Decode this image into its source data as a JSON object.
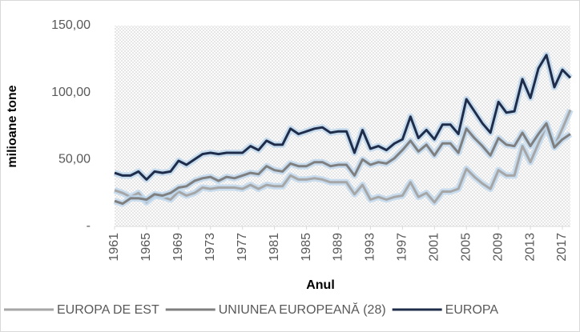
{
  "chart_data": {
    "type": "line",
    "x_label": "Anul",
    "y_label": "milioane tone",
    "x": [
      1961,
      1962,
      1963,
      1964,
      1965,
      1966,
      1967,
      1968,
      1969,
      1970,
      1971,
      1972,
      1973,
      1974,
      1975,
      1976,
      1977,
      1978,
      1979,
      1980,
      1981,
      1982,
      1983,
      1984,
      1985,
      1986,
      1987,
      1988,
      1989,
      1990,
      1991,
      1992,
      1993,
      1994,
      1995,
      1996,
      1997,
      1998,
      1999,
      2000,
      2001,
      2002,
      2003,
      2004,
      2005,
      2006,
      2007,
      2008,
      2009,
      2010,
      2011,
      2012,
      2013,
      2014,
      2015,
      2016,
      2017,
      2018
    ],
    "xlim": [
      1961,
      2018
    ],
    "xticks": [
      1961,
      1965,
      1969,
      1973,
      1977,
      1981,
      1985,
      1989,
      1993,
      1997,
      2001,
      2005,
      2009,
      2013,
      2017
    ],
    "ylim": [
      0,
      150
    ],
    "yticks": [
      {
        "value": 0,
        "label": "-"
      },
      {
        "value": 50,
        "label": "50,00"
      },
      {
        "value": 100,
        "label": "100,00"
      },
      {
        "value": 150,
        "label": "150,00"
      }
    ],
    "series": [
      {
        "name": "EUROPA DE EST",
        "color": "#a6a6a6",
        "values": [
          27,
          25,
          22,
          25,
          18,
          23,
          22,
          20,
          26,
          23,
          25,
          29,
          28,
          29,
          29,
          29,
          28,
          31,
          28,
          31,
          30,
          30,
          38,
          35,
          35,
          36,
          35,
          33,
          33,
          33,
          24,
          31,
          20,
          22,
          20,
          22,
          23,
          33,
          22,
          25,
          18,
          26,
          26,
          28,
          43,
          37,
          32,
          28,
          42,
          38,
          38,
          60,
          48,
          62,
          75,
          60,
          73,
          87
        ]
      },
      {
        "name": "UNIUNEA EUROPEANĂ (28)",
        "color": "#7f7f7f",
        "values": [
          19,
          17,
          21,
          21,
          20,
          24,
          23,
          25,
          29,
          30,
          34,
          36,
          37,
          34,
          37,
          36,
          38,
          40,
          39,
          45,
          42,
          41,
          47,
          45,
          45,
          48,
          48,
          45,
          46,
          46,
          38,
          50,
          46,
          48,
          47,
          51,
          57,
          64,
          56,
          61,
          53,
          62,
          62,
          55,
          73,
          66,
          60,
          53,
          66,
          61,
          60,
          70,
          60,
          69,
          77,
          59,
          65,
          69
        ]
      },
      {
        "name": "EUROPA",
        "color": "#1f2d4a",
        "values": [
          40,
          38,
          38,
          41,
          35,
          41,
          40,
          41,
          49,
          46,
          50,
          54,
          55,
          54,
          55,
          55,
          55,
          60,
          57,
          64,
          61,
          61,
          73,
          69,
          71,
          73,
          74,
          70,
          71,
          71,
          55,
          72,
          58,
          60,
          57,
          62,
          65,
          82,
          66,
          72,
          65,
          76,
          76,
          69,
          95,
          86,
          77,
          70,
          93,
          85,
          86,
          110,
          96,
          118,
          128,
          104,
          117,
          111
        ]
      }
    ]
  }
}
